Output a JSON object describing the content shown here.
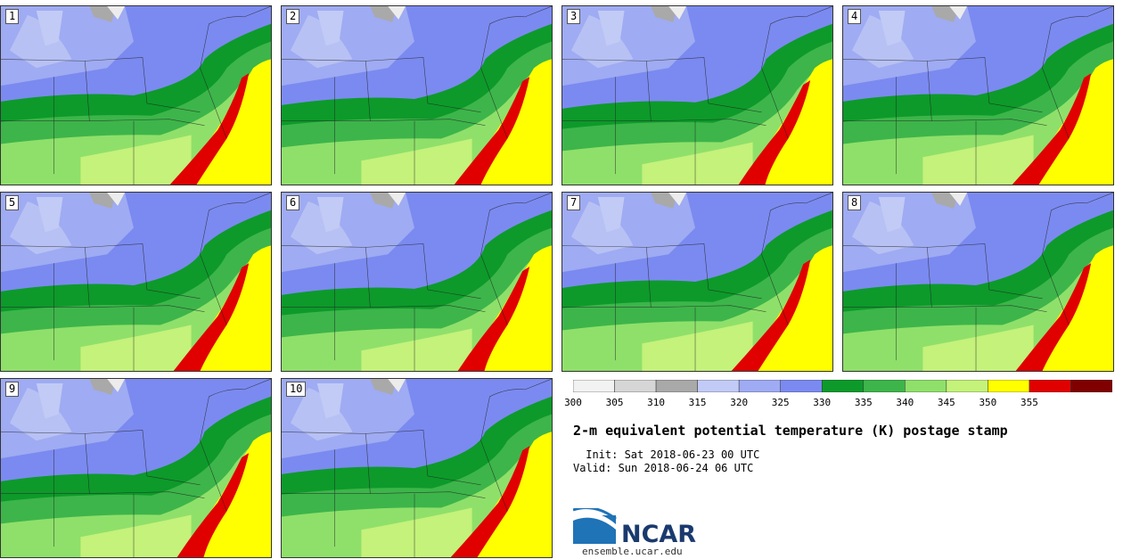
{
  "panels": [
    {
      "label": "1"
    },
    {
      "label": "2"
    },
    {
      "label": "3"
    },
    {
      "label": "4"
    },
    {
      "label": "5"
    },
    {
      "label": "6"
    },
    {
      "label": "7"
    },
    {
      "label": "8"
    },
    {
      "label": "9"
    },
    {
      "label": "10"
    }
  ],
  "colorbar": {
    "ticks": [
      "300",
      "305",
      "310",
      "315",
      "320",
      "325",
      "330",
      "335",
      "340",
      "345",
      "350",
      "355"
    ],
    "colors": [
      "#f2f2f2",
      "#d6d6d6",
      "#a9a9a9",
      "#c2cbf5",
      "#9fabf2",
      "#7b8af0",
      "#0d9a2a",
      "#3db54a",
      "#8fe06a",
      "#c4f27a",
      "#ffff00",
      "#e00000",
      "#800000"
    ]
  },
  "map_colors": {
    "blue_light": "#9fabf2",
    "blue_mid": "#7b8af0",
    "blue_pale": "#c2cbf5",
    "green_dark": "#0d9a2a",
    "green_mid": "#3db54a",
    "green_light": "#8fe06a",
    "green_pale": "#c4f27a",
    "yellow": "#ffff00",
    "red": "#e00000",
    "gray": "#a9a9a9",
    "white": "#ececec"
  },
  "title": "2-m equivalent potential temperature (K) postage stamp",
  "init": " Init: Sat 2018-06-23 00 UTC",
  "valid": "Valid: Sun 2018-06-24 06 UTC",
  "logo": {
    "name": "NCAR",
    "url": "ensemble.ucar.edu"
  }
}
